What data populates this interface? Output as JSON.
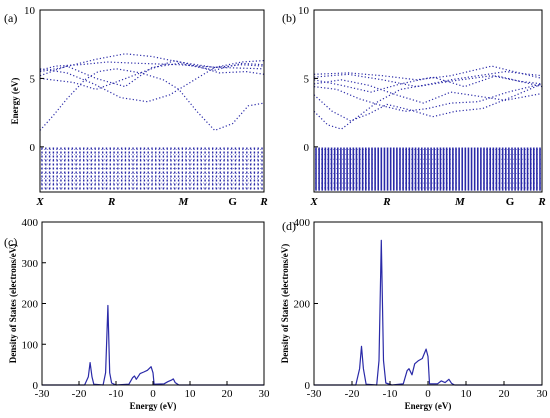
{
  "chart_data": [
    {
      "panel": "(a)",
      "type": "line",
      "ylabel": "Energy (eV)",
      "ylim": [
        -3.3,
        10
      ],
      "y_ticks": [
        0,
        5,
        10
      ],
      "x_ticks": [
        "X",
        "R",
        "M",
        "G",
        "R"
      ],
      "x_ticks_upright": [
        false,
        false,
        false,
        true,
        false
      ],
      "band_gap": [
        0,
        1.2
      ],
      "series": [
        {
          "points": [
            [
              0.0,
              5.6
            ],
            [
              0.07,
              5.9
            ],
            [
              0.18,
              6.0
            ],
            [
              0.3,
              6.2
            ],
            [
              0.45,
              6.1
            ],
            [
              0.62,
              6.0
            ],
            [
              0.8,
              5.8
            ],
            [
              1.0,
              5.7
            ]
          ]
        },
        {
          "points": [
            [
              0.0,
              5.5
            ],
            [
              0.1,
              5.8
            ],
            [
              0.25,
              6.4
            ],
            [
              0.38,
              6.8
            ],
            [
              0.5,
              6.6
            ],
            [
              0.62,
              6.2
            ],
            [
              0.78,
              5.8
            ],
            [
              0.9,
              6.0
            ],
            [
              1.0,
              5.9
            ]
          ]
        },
        {
          "points": [
            [
              0.0,
              5.2
            ],
            [
              0.12,
              5.9
            ],
            [
              0.25,
              5.0
            ],
            [
              0.38,
              4.4
            ],
            [
              0.5,
              5.8
            ],
            [
              0.62,
              6.1
            ],
            [
              0.78,
              5.6
            ],
            [
              0.9,
              6.1
            ],
            [
              1.0,
              6.0
            ]
          ]
        },
        {
          "points": [
            [
              0.0,
              5.0
            ],
            [
              0.15,
              4.7
            ],
            [
              0.25,
              4.2
            ],
            [
              0.35,
              4.8
            ],
            [
              0.48,
              5.6
            ],
            [
              0.6,
              6.3
            ],
            [
              0.7,
              5.9
            ],
            [
              0.8,
              5.4
            ],
            [
              0.92,
              5.5
            ],
            [
              1.0,
              5.3
            ]
          ]
        },
        {
          "points": [
            [
              0.0,
              5.7
            ],
            [
              0.12,
              5.4
            ],
            [
              0.24,
              4.6
            ],
            [
              0.36,
              3.6
            ],
            [
              0.48,
              3.3
            ],
            [
              0.58,
              3.8
            ],
            [
              0.66,
              4.6
            ],
            [
              0.78,
              5.8
            ],
            [
              0.9,
              6.2
            ],
            [
              1.0,
              6.3
            ]
          ]
        },
        {
          "points": [
            [
              0.0,
              1.2
            ],
            [
              0.06,
              2.3
            ],
            [
              0.12,
              3.5
            ],
            [
              0.2,
              4.9
            ],
            [
              0.26,
              5.5
            ],
            [
              0.34,
              5.7
            ],
            [
              0.45,
              5.4
            ],
            [
              0.55,
              4.9
            ],
            [
              0.62,
              4.2
            ],
            [
              0.7,
              2.6
            ],
            [
              0.78,
              1.2
            ],
            [
              0.86,
              1.7
            ],
            [
              0.93,
              3.0
            ],
            [
              1.0,
              3.2
            ]
          ]
        }
      ]
    },
    {
      "panel": "(b)",
      "type": "line",
      "ylabel": "",
      "ylim": [
        -3.3,
        10
      ],
      "y_ticks": [
        0,
        5,
        10
      ],
      "x_ticks": [
        "X",
        "R",
        "M",
        "G",
        "R"
      ],
      "x_ticks_upright": [
        false,
        false,
        false,
        true,
        false
      ],
      "band_gap": [
        0,
        1.0
      ],
      "series": [
        {
          "points": [
            [
              0.0,
              5.3
            ],
            [
              0.15,
              5.4
            ],
            [
              0.3,
              5.2
            ],
            [
              0.45,
              4.9
            ],
            [
              0.6,
              5.2
            ],
            [
              0.78,
              5.9
            ],
            [
              0.9,
              5.4
            ],
            [
              1.0,
              5.0
            ]
          ]
        },
        {
          "points": [
            [
              0.0,
              5.1
            ],
            [
              0.15,
              5.3
            ],
            [
              0.3,
              4.9
            ],
            [
              0.45,
              4.4
            ],
            [
              0.6,
              4.8
            ],
            [
              0.78,
              5.2
            ],
            [
              0.9,
              4.8
            ],
            [
              1.0,
              4.6
            ]
          ]
        },
        {
          "points": [
            [
              0.0,
              4.9
            ],
            [
              0.12,
              4.5
            ],
            [
              0.25,
              4.0
            ],
            [
              0.38,
              4.6
            ],
            [
              0.52,
              5.1
            ],
            [
              0.66,
              4.4
            ],
            [
              0.8,
              5.2
            ],
            [
              1.0,
              4.4
            ]
          ]
        },
        {
          "points": [
            [
              0.0,
              4.6
            ],
            [
              0.12,
              4.9
            ],
            [
              0.24,
              4.5
            ],
            [
              0.36,
              3.8
            ],
            [
              0.48,
              3.2
            ],
            [
              0.6,
              4.0
            ],
            [
              0.72,
              3.7
            ],
            [
              0.84,
              3.4
            ],
            [
              1.0,
              3.9
            ]
          ]
        },
        {
          "points": [
            [
              0.0,
              4.4
            ],
            [
              0.1,
              4.2
            ],
            [
              0.2,
              3.5
            ],
            [
              0.3,
              3.0
            ],
            [
              0.4,
              2.6
            ],
            [
              0.5,
              2.8
            ],
            [
              0.6,
              3.2
            ],
            [
              0.72,
              3.3
            ],
            [
              0.85,
              4.0
            ],
            [
              1.0,
              4.6
            ]
          ]
        },
        {
          "points": [
            [
              0.0,
              3.8
            ],
            [
              0.08,
              2.6
            ],
            [
              0.16,
              1.9
            ],
            [
              0.24,
              2.4
            ],
            [
              0.32,
              3.1
            ],
            [
              0.42,
              2.7
            ],
            [
              0.52,
              2.2
            ],
            [
              0.62,
              2.6
            ],
            [
              0.74,
              2.8
            ],
            [
              0.86,
              3.6
            ],
            [
              1.0,
              4.6
            ]
          ]
        },
        {
          "points": [
            [
              0.0,
              2.6
            ],
            [
              0.06,
              1.6
            ],
            [
              0.12,
              1.3
            ],
            [
              0.2,
              2.3
            ],
            [
              0.28,
              3.3
            ],
            [
              0.38,
              4.2
            ],
            [
              0.48,
              4.5
            ],
            [
              0.6,
              4.9
            ],
            [
              0.72,
              5.2
            ],
            [
              0.84,
              5.5
            ],
            [
              1.0,
              5.2
            ]
          ]
        }
      ]
    },
    {
      "panel": "(c)",
      "type": "line",
      "xlabel": "Energy (eV)",
      "ylabel": "Density of States (electrons/eV)",
      "xlim": [
        -30,
        30
      ],
      "ylim": [
        0,
        400
      ],
      "x_ticks": [
        -30,
        -20,
        -10,
        0,
        10,
        20,
        30
      ],
      "y_ticks": [
        0,
        100,
        200,
        300,
        400
      ],
      "series": [
        {
          "points": [
            [
              -30,
              0
            ],
            [
              -18.5,
              0
            ],
            [
              -17.5,
              20
            ],
            [
              -17,
              55
            ],
            [
              -16.5,
              20
            ],
            [
              -16,
              2
            ],
            [
              -13.5,
              0
            ],
            [
              -12.8,
              30
            ],
            [
              -12.2,
              195
            ],
            [
              -11.7,
              30
            ],
            [
              -11.2,
              5
            ],
            [
              -10,
              0
            ],
            [
              -6.5,
              2
            ],
            [
              -5.5,
              18
            ],
            [
              -5,
              22
            ],
            [
              -4.5,
              14
            ],
            [
              -3.5,
              28
            ],
            [
              -2.5,
              32
            ],
            [
              -1.5,
              36
            ],
            [
              -0.5,
              45
            ],
            [
              0,
              30
            ],
            [
              0.3,
              2
            ],
            [
              3,
              3
            ],
            [
              4,
              8
            ],
            [
              5,
              12
            ],
            [
              5.5,
              15
            ],
            [
              6,
              6
            ],
            [
              7,
              0
            ],
            [
              30,
              0
            ]
          ]
        }
      ]
    },
    {
      "panel": "(d)",
      "type": "line",
      "xlabel": "Energy (eV)",
      "ylabel": "Density of States (electrons/eV)",
      "xlim": [
        -30,
        30
      ],
      "ylim": [
        0,
        400
      ],
      "x_ticks": [
        -30,
        -20,
        -10,
        0,
        10,
        20,
        30
      ],
      "y_ticks": [
        0,
        200,
        400
      ],
      "series": [
        {
          "points": [
            [
              -30,
              0
            ],
            [
              -19,
              0
            ],
            [
              -18,
              40
            ],
            [
              -17.5,
              95
            ],
            [
              -17,
              40
            ],
            [
              -16.3,
              2
            ],
            [
              -13.5,
              0
            ],
            [
              -12.9,
              60
            ],
            [
              -12.3,
              355
            ],
            [
              -11.7,
              60
            ],
            [
              -11.1,
              5
            ],
            [
              -9.5,
              0
            ],
            [
              -6.5,
              3
            ],
            [
              -5.5,
              35
            ],
            [
              -5,
              40
            ],
            [
              -4.2,
              25
            ],
            [
              -3.5,
              52
            ],
            [
              -2.5,
              60
            ],
            [
              -1.5,
              65
            ],
            [
              -0.5,
              88
            ],
            [
              0,
              70
            ],
            [
              0.4,
              3
            ],
            [
              2.5,
              3
            ],
            [
              3.5,
              10
            ],
            [
              4.5,
              6
            ],
            [
              5.5,
              14
            ],
            [
              6.2,
              4
            ],
            [
              7,
              0
            ],
            [
              30,
              0
            ]
          ]
        }
      ]
    }
  ],
  "colors": {
    "line": "#2a2aa8",
    "axis": "#000000"
  }
}
